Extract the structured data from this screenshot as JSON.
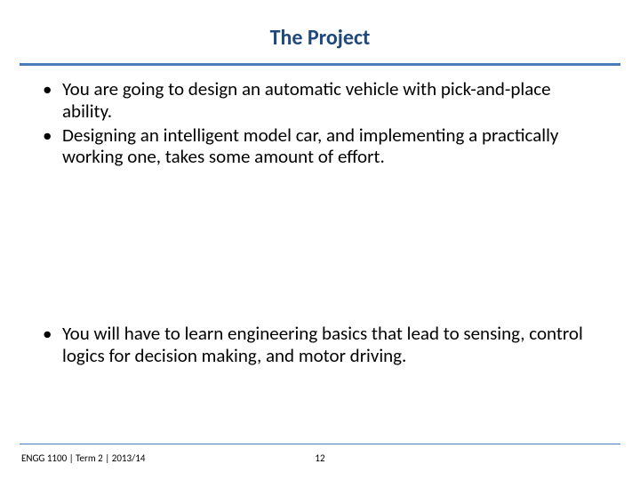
{
  "title": {
    "text": "The Project",
    "color": "#1f497d",
    "fontsize": 24
  },
  "rules": {
    "title_rule_color": "#4a7ebb",
    "title_rule_width": 3,
    "footer_rule_color": "#4a7ebb",
    "footer_rule_width": 1
  },
  "body": {
    "fontsize": 21,
    "line_height": 1.18,
    "color": "#000000",
    "bullets_top": [
      "You are going to design an automatic vehicle with pick-and-place ability.",
      "Designing an intelligent model car, and implementing a practically working one, takes some amount of effort."
    ],
    "bullets_bottom": [
      "You will have to learn engineering basics that lead to sensing, control logics for decision making, and motor driving."
    ]
  },
  "footer": {
    "left_text": "ENGG 1100 | Term 2 | 2013/14",
    "page_number": "12",
    "fontsize": 11,
    "color": "#000000"
  },
  "background_color": "#ffffff"
}
